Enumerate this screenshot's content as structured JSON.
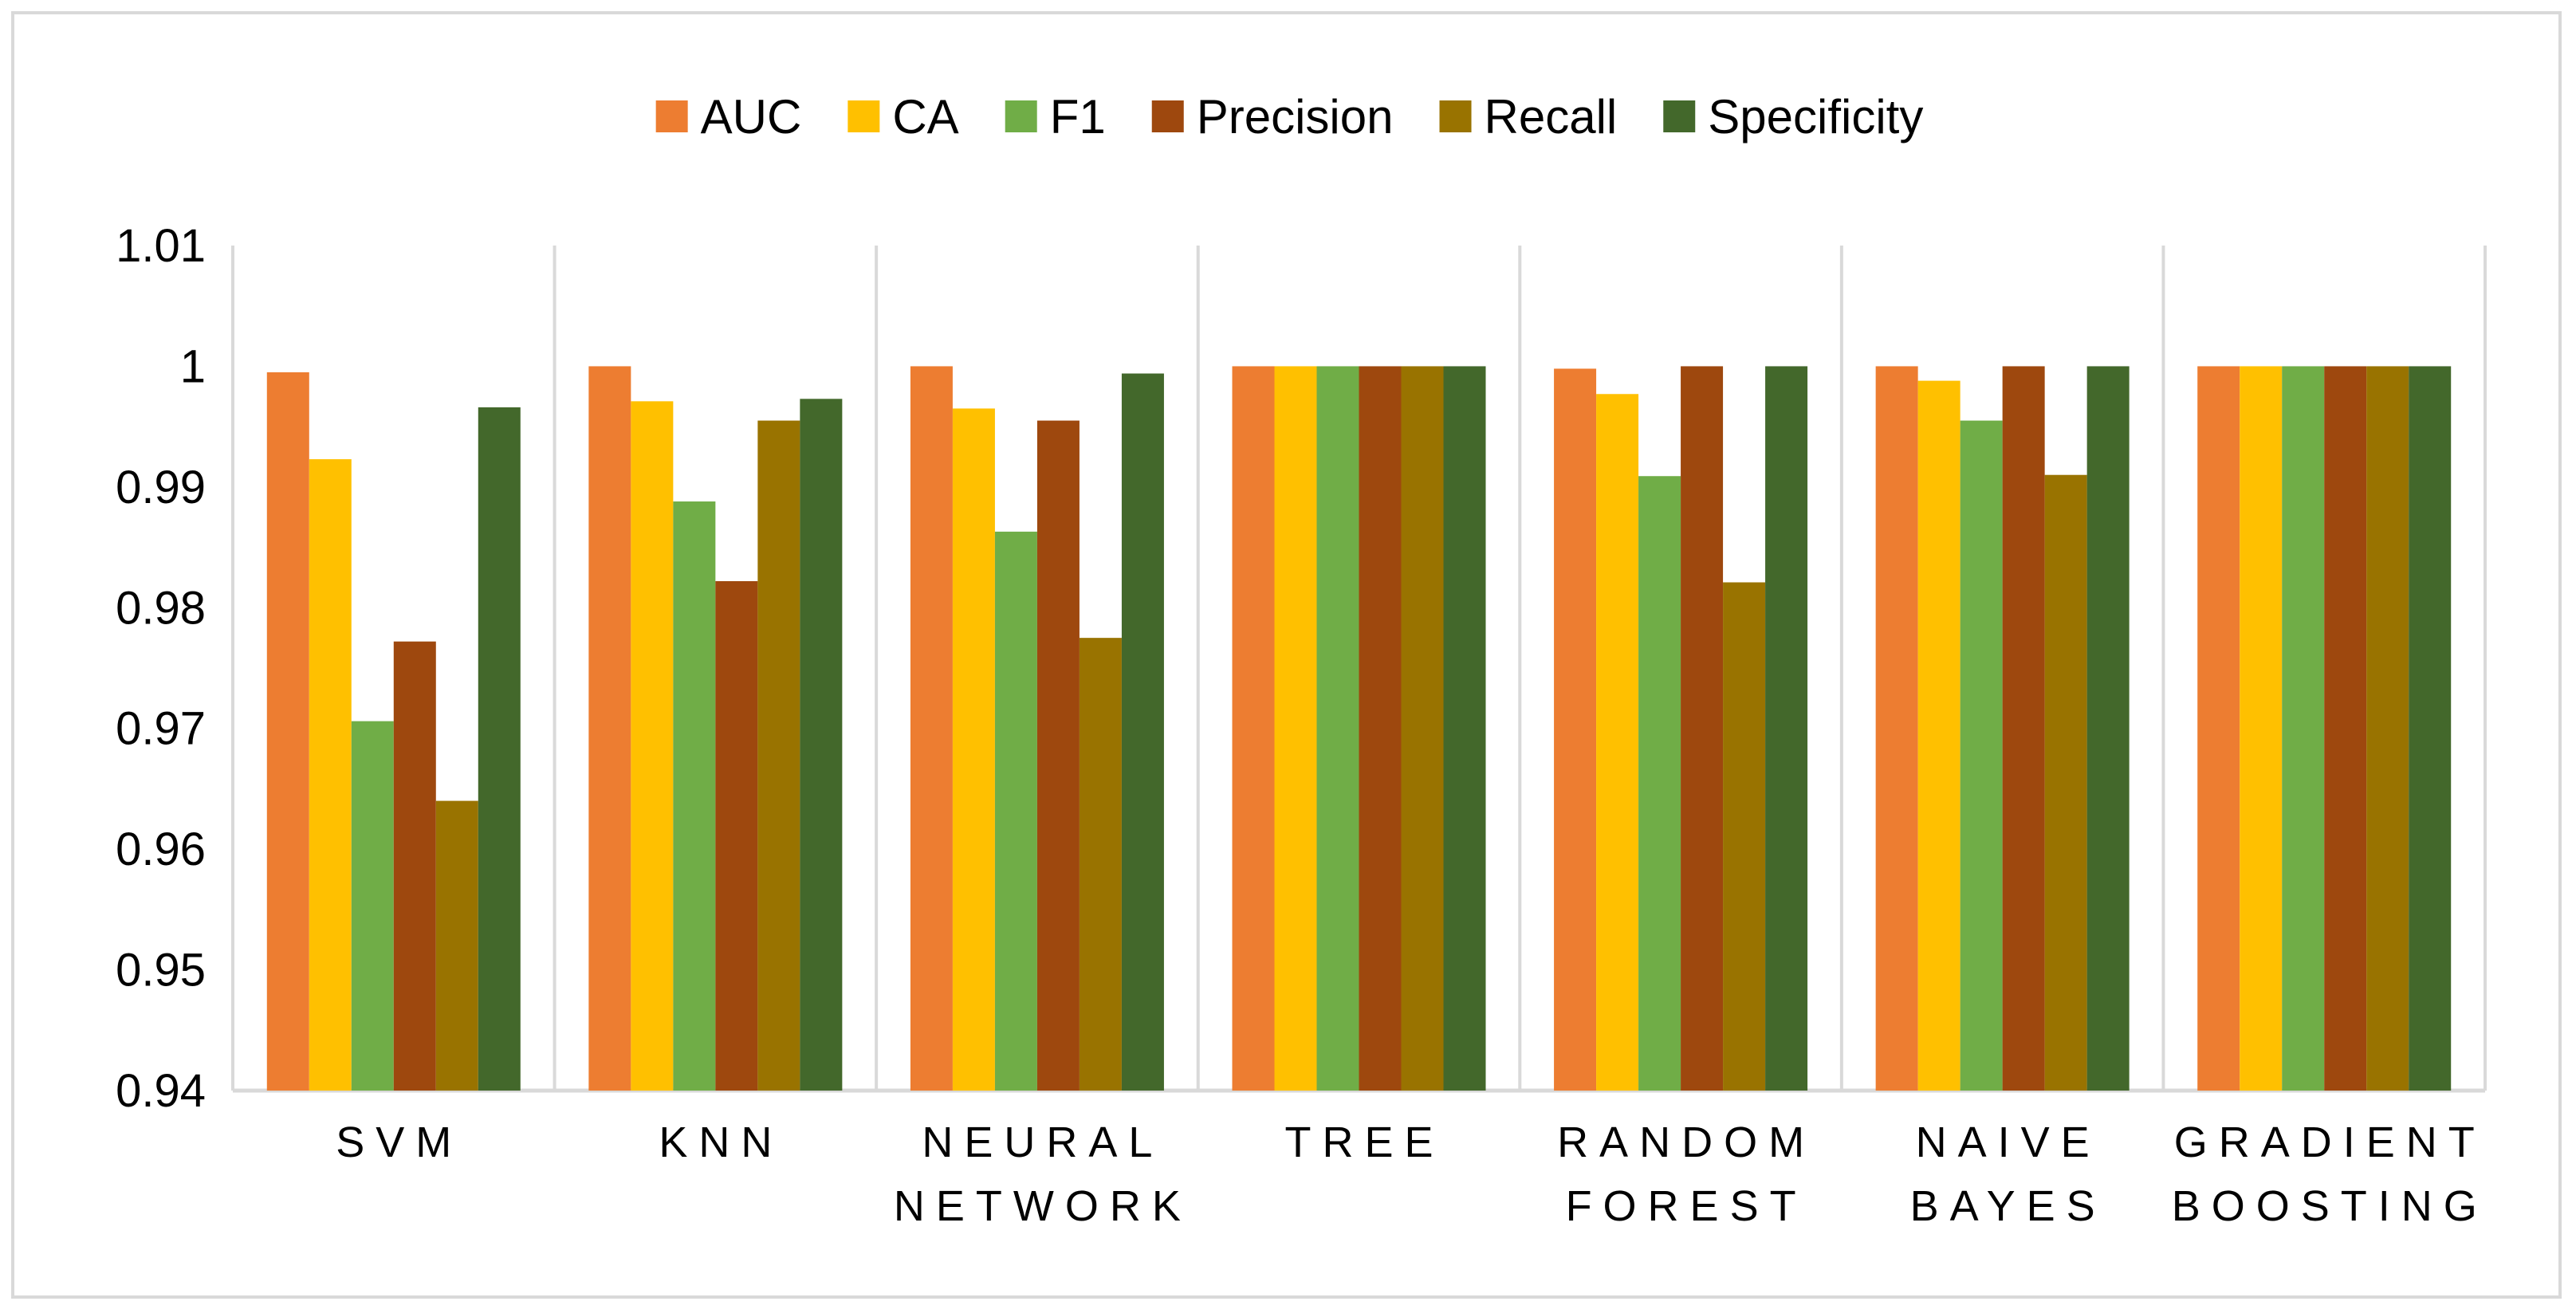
{
  "chart_data": {
    "type": "bar",
    "title": "",
    "xlabel": "",
    "ylabel": "",
    "ylim": [
      0.94,
      1.01
    ],
    "yticks": [
      0.94,
      0.95,
      0.96,
      0.97,
      0.98,
      0.99,
      1,
      1.01
    ],
    "ytick_labels": [
      "0.94",
      "0.95",
      "0.96",
      "0.97",
      "0.98",
      "0.99",
      "1",
      "1.01"
    ],
    "grid": "vertical category separators",
    "legend": "top-center",
    "categories": [
      [
        "SVM"
      ],
      [
        "KNN"
      ],
      [
        "NEURAL",
        "NETWORK"
      ],
      [
        "TREE"
      ],
      [
        "RANDOM",
        "FOREST"
      ],
      [
        "NAIVE",
        "BAYES"
      ],
      [
        "GRADIENT",
        "BOOSTING"
      ]
    ],
    "series": [
      {
        "name": "AUC",
        "color": "#ed7d31",
        "values": [
          0.9995,
          1.0,
          1.0,
          1.0,
          0.9998,
          1.0,
          1.0
        ]
      },
      {
        "name": "CA",
        "color": "#ffc000",
        "values": [
          0.9923,
          0.9971,
          0.9965,
          1.0,
          0.9977,
          0.9988,
          1.0
        ]
      },
      {
        "name": "F1",
        "color": "#70ad47",
        "values": [
          0.9706,
          0.9888,
          0.9863,
          1.0,
          0.9909,
          0.9955,
          1.0
        ]
      },
      {
        "name": "Precision",
        "color": "#9e480e",
        "values": [
          0.9772,
          0.9822,
          0.9955,
          1.0,
          1.0,
          1.0,
          1.0
        ]
      },
      {
        "name": "Recall",
        "color": "#997300",
        "values": [
          0.964,
          0.9955,
          0.9775,
          1.0,
          0.9821,
          0.991,
          1.0
        ]
      },
      {
        "name": "Specificity",
        "color": "#43682b",
        "values": [
          0.9966,
          0.9973,
          0.9994,
          1.0,
          1.0,
          1.0,
          1.0
        ]
      }
    ]
  }
}
